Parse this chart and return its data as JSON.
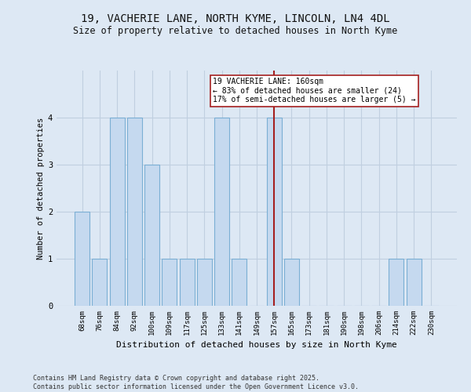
{
  "title_line1": "19, VACHERIE LANE, NORTH KYME, LINCOLN, LN4 4DL",
  "title_line2": "Size of property relative to detached houses in North Kyme",
  "xlabel": "Distribution of detached houses by size in North Kyme",
  "ylabel": "Number of detached properties",
  "categories": [
    "68sqm",
    "76sqm",
    "84sqm",
    "92sqm",
    "100sqm",
    "109sqm",
    "117sqm",
    "125sqm",
    "133sqm",
    "141sqm",
    "149sqm",
    "157sqm",
    "165sqm",
    "173sqm",
    "181sqm",
    "190sqm",
    "198sqm",
    "206sqm",
    "214sqm",
    "222sqm",
    "230sqm"
  ],
  "values": [
    2,
    1,
    4,
    4,
    3,
    1,
    1,
    1,
    4,
    1,
    0,
    4,
    1,
    0,
    0,
    0,
    0,
    0,
    1,
    1,
    0
  ],
  "bar_color": "#c5d9ef",
  "bar_edge_color": "#7bafd4",
  "highlight_index": 11,
  "highlight_line_color": "#a52020",
  "annotation_text": "19 VACHERIE LANE: 160sqm\n← 83% of detached houses are smaller (24)\n17% of semi-detached houses are larger (5) →",
  "annotation_box_color": "#ffffff",
  "annotation_box_edge_color": "#a52020",
  "ylim": [
    0,
    5
  ],
  "yticks": [
    0,
    1,
    2,
    3,
    4
  ],
  "grid_color": "#c0cfe0",
  "bg_color": "#dde8f4",
  "footer_text": "Contains HM Land Registry data © Crown copyright and database right 2025.\nContains public sector information licensed under the Open Government Licence v3.0.",
  "title_fontsize": 10,
  "subtitle_fontsize": 8.5,
  "axis_label_fontsize": 7.5,
  "tick_fontsize": 6.5,
  "annotation_fontsize": 7,
  "footer_fontsize": 6
}
